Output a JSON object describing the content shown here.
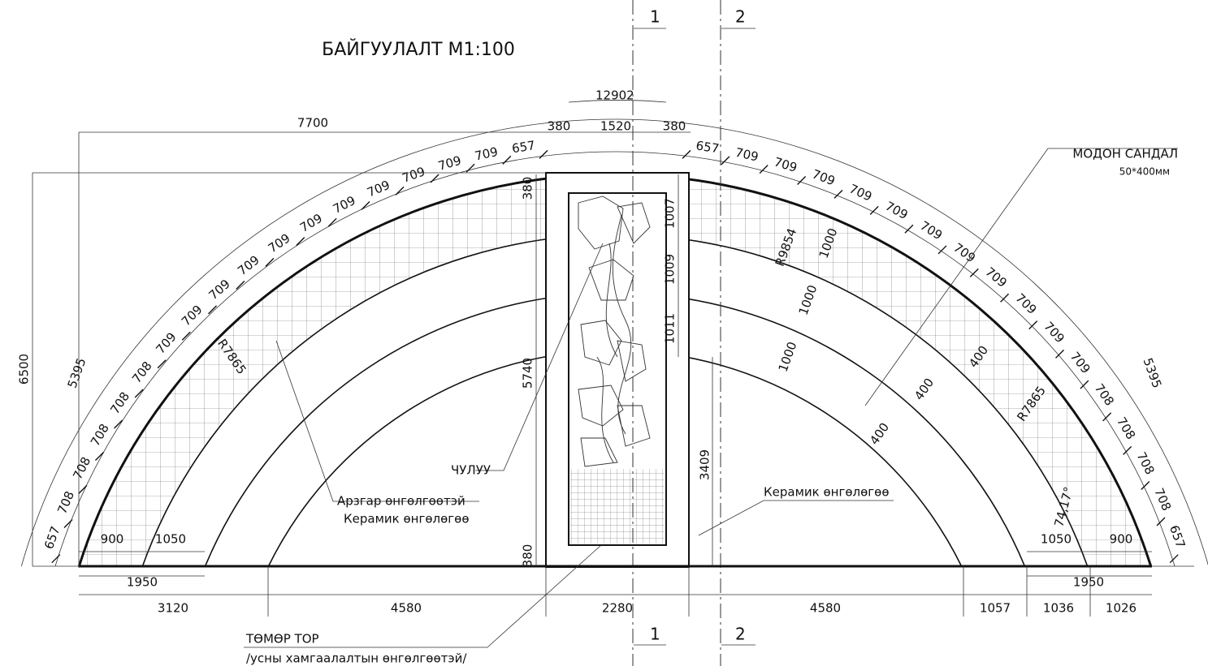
{
  "title": "БАЙГУУЛАЛТ М1:100",
  "sections": [
    "1",
    "2"
  ],
  "labels": {
    "bench": "МОДОН САНДАЛ",
    "bench_size": "50*400мм",
    "stone": "ЧУЛУУ",
    "rough_finish": "Арзгар өнгөлгөөтэй",
    "ceramic": "Керамик өнгөлөгөө",
    "mesh": "ТӨМӨР ТОР",
    "mesh_note": "/усны хамгаалалтын өнгөлгөөтэй/"
  },
  "dimensions": {
    "arc_length": "12902",
    "top_left": "7700",
    "top_side": "380",
    "top_center": "1520",
    "height": "6500",
    "arc_side": "5395",
    "column_top": "380",
    "column_height": "5740",
    "column_bottom": "380",
    "right_height": "3409",
    "step1": "1007",
    "step2": "1009",
    "step3": "1011",
    "radius_inner": "R7865",
    "radius_outer": "R9854",
    "grid": "1000",
    "tile": "400",
    "angle": "74,17°",
    "bench_w": "900",
    "step_w": "1050",
    "base_pair": "1950",
    "base_left": "3120",
    "span": "4580",
    "column_w": "2280",
    "r1": "1057",
    "r2": "1036",
    "r3": "1026"
  },
  "arc_left": [
    "657",
    "708",
    "708",
    "708",
    "708",
    "708",
    "709",
    "709",
    "709",
    "709",
    "709",
    "709",
    "709",
    "709",
    "709",
    "709",
    "709",
    "657"
  ],
  "arc_right": [
    "657",
    "709",
    "709",
    "709",
    "709",
    "709",
    "709",
    "709",
    "709",
    "709",
    "709",
    "709",
    "708",
    "708",
    "708",
    "708",
    "657"
  ]
}
